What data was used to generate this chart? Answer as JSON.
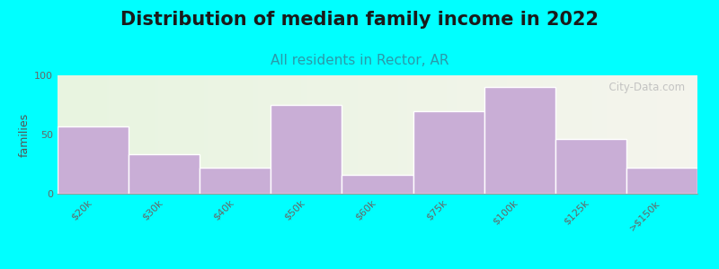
{
  "title": "Distribution of median family income in 2022",
  "subtitle": "All residents in Rector, AR",
  "ylabel": "families",
  "categories": [
    "$20k",
    "$30k",
    "$40k",
    "$50k",
    "$60k",
    "$75k",
    "$100k",
    "$125k",
    ">$150k"
  ],
  "values": [
    57,
    33,
    22,
    75,
    16,
    70,
    90,
    46,
    22
  ],
  "bar_color": "#c9aed6",
  "background_outer": "#00ffff",
  "background_plot_left": "#e8f5e0",
  "background_plot_right": "#f5f5f0",
  "ylim": [
    0,
    100
  ],
  "yticks": [
    0,
    50,
    100
  ],
  "title_fontsize": 15,
  "subtitle_fontsize": 11,
  "ylabel_fontsize": 9,
  "tick_label_fontsize": 8,
  "watermark_text": "  City-Data.com"
}
